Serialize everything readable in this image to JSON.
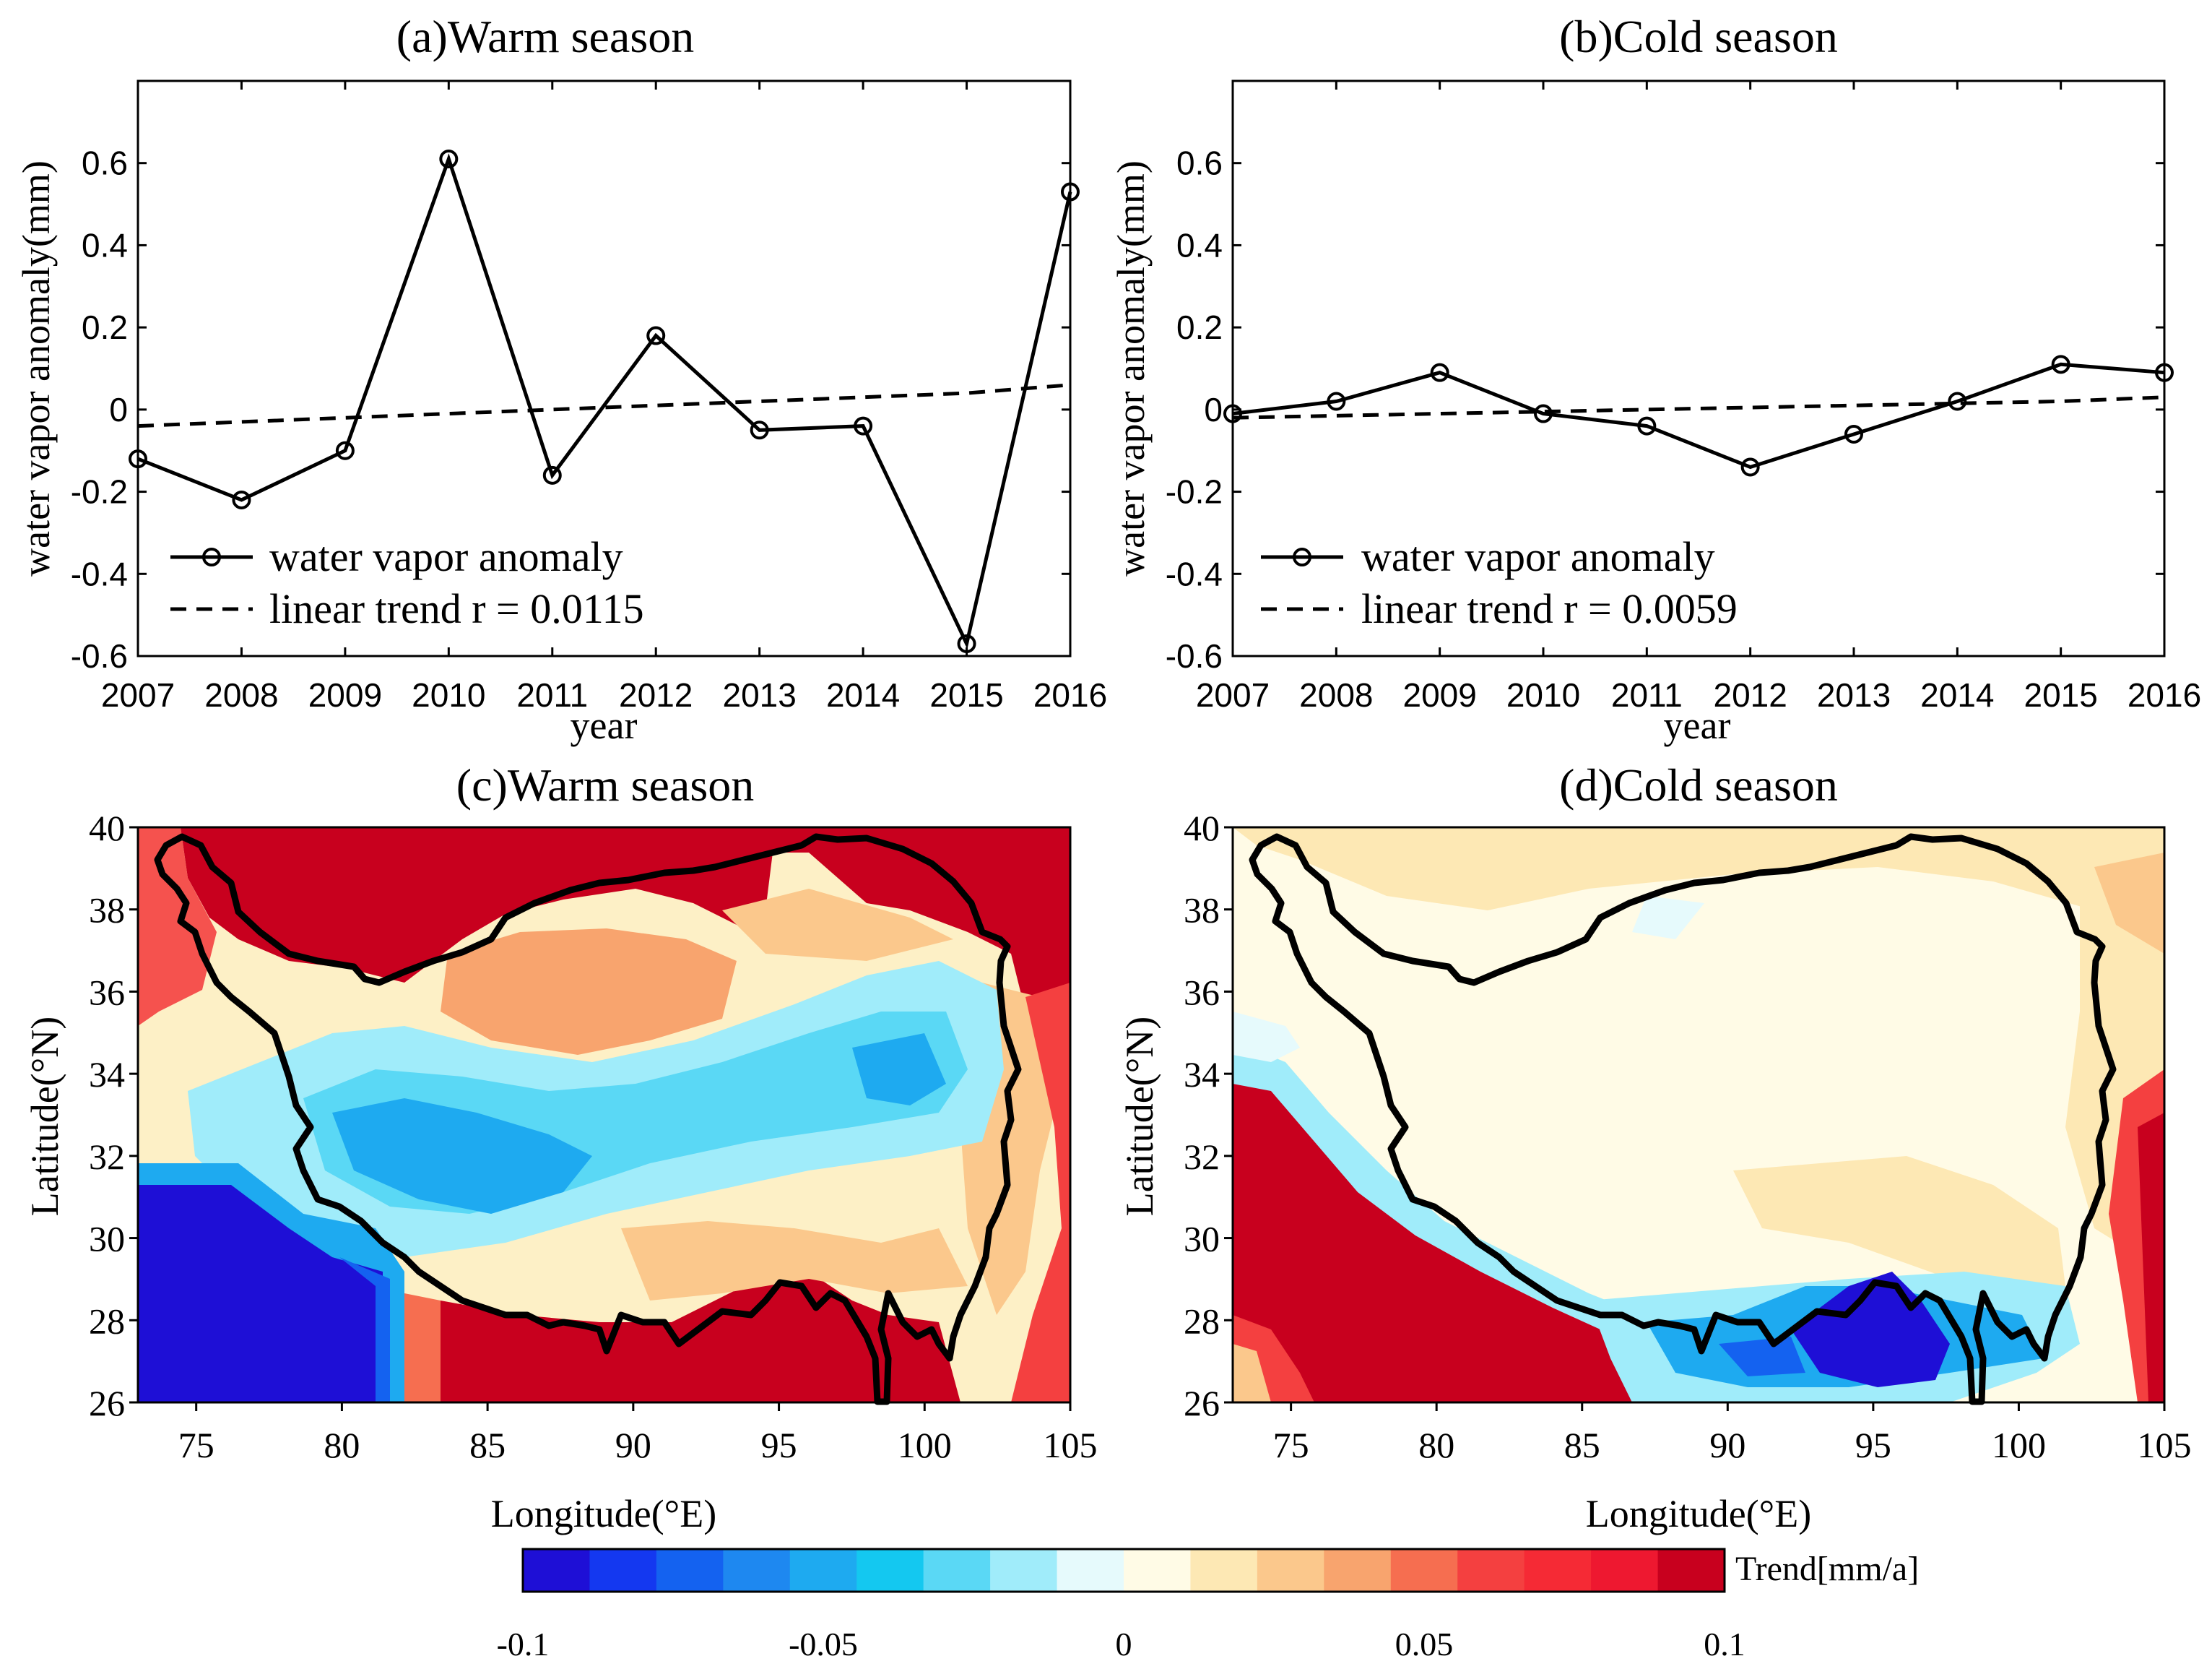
{
  "chart_data": [
    {
      "type": "line",
      "title": "(a)Warm season",
      "xlabel": "year",
      "ylabel": "water vapor anomaly(mm)",
      "x": [
        2007,
        2008,
        2009,
        2010,
        2011,
        2012,
        2013,
        2014,
        2015,
        2016
      ],
      "xticks": [
        "2007",
        "2008",
        "2009",
        "2010",
        "2011",
        "2012",
        "2013",
        "2014",
        "2015",
        "2016"
      ],
      "ylim": [
        -0.6,
        0.8
      ],
      "yticks": [
        "-0.6",
        "-0.4",
        "-0.2",
        "0",
        "0.2",
        "0.4",
        "0.6"
      ],
      "series": [
        {
          "name": "water vapor anomaly",
          "style": "solid-circle",
          "values": [
            -0.12,
            -0.22,
            -0.1,
            0.61,
            -0.16,
            0.18,
            -0.05,
            -0.04,
            -0.57,
            0.53
          ]
        },
        {
          "name": "linear trend r = 0.0115",
          "style": "dashed",
          "values": [
            -0.04,
            -0.03,
            -0.02,
            -0.01,
            0.0,
            0.01,
            0.02,
            0.03,
            0.04,
            0.06
          ]
        }
      ],
      "legend": "bottom-left",
      "grid": false
    },
    {
      "type": "line",
      "title": "(b)Cold season",
      "xlabel": "year",
      "ylabel": "water vapor anomaly(mm)",
      "x": [
        2007,
        2008,
        2009,
        2010,
        2011,
        2012,
        2013,
        2014,
        2015,
        2016
      ],
      "xticks": [
        "2007",
        "2008",
        "2009",
        "2010",
        "2011",
        "2012",
        "2013",
        "2014",
        "2015",
        "2016"
      ],
      "ylim": [
        -0.6,
        0.8
      ],
      "yticks": [
        "-0.6",
        "-0.4",
        "-0.2",
        "0",
        "0.2",
        "0.4",
        "0.6"
      ],
      "series": [
        {
          "name": "water vapor anomaly",
          "style": "solid-circle",
          "values": [
            -0.01,
            0.02,
            0.09,
            -0.01,
            -0.04,
            -0.14,
            -0.06,
            0.02,
            0.11,
            0.09
          ]
        },
        {
          "name": "linear trend r = 0.0059",
          "style": "dashed",
          "values": [
            -0.02,
            -0.015,
            -0.01,
            -0.005,
            0.0,
            0.005,
            0.01,
            0.015,
            0.02,
            0.03
          ]
        }
      ],
      "legend": "bottom-left",
      "grid": false
    },
    {
      "type": "heatmap",
      "title": "(c)Warm season",
      "xlabel": "Longitude(°E)",
      "ylabel": "Latitude(°N)",
      "xlim": [
        73,
        105
      ],
      "ylim": [
        26,
        40
      ],
      "xticks": [
        "75",
        "80",
        "85",
        "90",
        "95",
        "100",
        "105"
      ],
      "yticks": [
        "26",
        "28",
        "30",
        "32",
        "34",
        "36",
        "38",
        "40"
      ]
    },
    {
      "type": "heatmap",
      "title": "(d)Cold season",
      "xlabel": "Longitude(°E)",
      "ylabel": "Latitude(°N)",
      "xlim": [
        73,
        105
      ],
      "ylim": [
        26,
        40
      ],
      "xticks": [
        "75",
        "80",
        "85",
        "90",
        "95",
        "100",
        "105"
      ],
      "yticks": [
        "26",
        "28",
        "30",
        "32",
        "34",
        "36",
        "38",
        "40"
      ]
    }
  ],
  "colorbar": {
    "label": "Trend[mm/a]",
    "range": [
      -0.1,
      0.1
    ],
    "ticks": [
      "-0.1",
      "-0.05",
      "0",
      "0.05",
      "0.1"
    ],
    "colors": [
      "#1e0fd6",
      "#1438f0",
      "#1462f0",
      "#1e88f0",
      "#1eaaf0",
      "#14c8f0",
      "#5ad8f5",
      "#a0ecfa",
      "#e6fafc",
      "#fffbe6",
      "#fde8b4",
      "#fbc88c",
      "#f8a46e",
      "#f66e50",
      "#f44040",
      "#f52a35",
      "#ee1830",
      "#c8001e"
    ]
  }
}
